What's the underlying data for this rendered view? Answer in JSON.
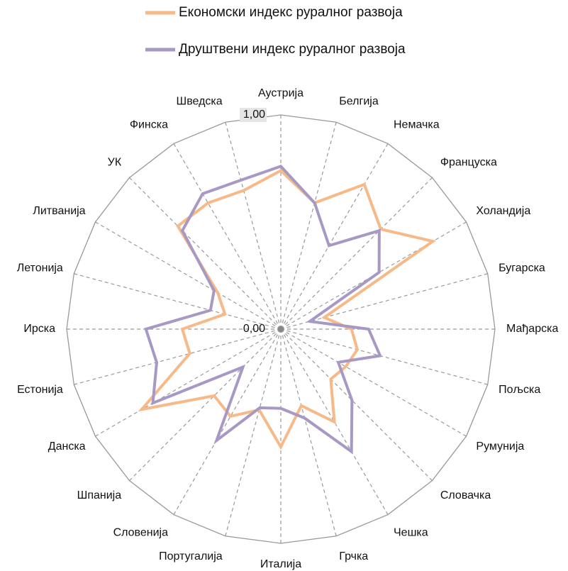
{
  "chart_data": {
    "type": "radar",
    "categories": [
      "Аустрија",
      "Белгија",
      "Немачка",
      "Француска",
      "Холандија",
      "Бугарска",
      "Мађарска",
      "Пољска",
      "Румунија",
      "Словачка",
      "Чешка",
      "Грчка",
      "Италија",
      "Португалија",
      "Словенија",
      "Шпанија",
      "Данска",
      "Естонија",
      "Ирска",
      "Летонија",
      "Литванија",
      "УК",
      "Финска",
      "Шведска"
    ],
    "series": [
      {
        "name": "Економски индекс руралног развоја",
        "color": "#f6b987",
        "values": [
          0.74,
          0.61,
          0.78,
          0.66,
          0.82,
          0.21,
          0.33,
          0.37,
          0.35,
          0.33,
          0.5,
          0.37,
          0.55,
          0.39,
          0.47,
          0.44,
          0.75,
          0.44,
          0.46,
          0.27,
          0.34,
          0.68,
          0.68,
          0.67
        ]
      },
      {
        "name": "Друштвени индекс руралног развоја",
        "color": "#a898c4",
        "values": [
          0.76,
          0.61,
          0.45,
          0.65,
          0.53,
          0.14,
          0.41,
          0.48,
          0.31,
          0.47,
          0.66,
          0.43,
          0.37,
          0.38,
          0.6,
          0.25,
          0.69,
          0.6,
          0.63,
          0.34,
          0.36,
          0.65,
          0.73,
          0.72
        ]
      }
    ],
    "rlim": [
      0,
      1
    ],
    "rticks": [
      {
        "value": 0,
        "label": "0,00"
      },
      {
        "value": 1,
        "label": "1,00"
      }
    ],
    "legend": "top"
  }
}
